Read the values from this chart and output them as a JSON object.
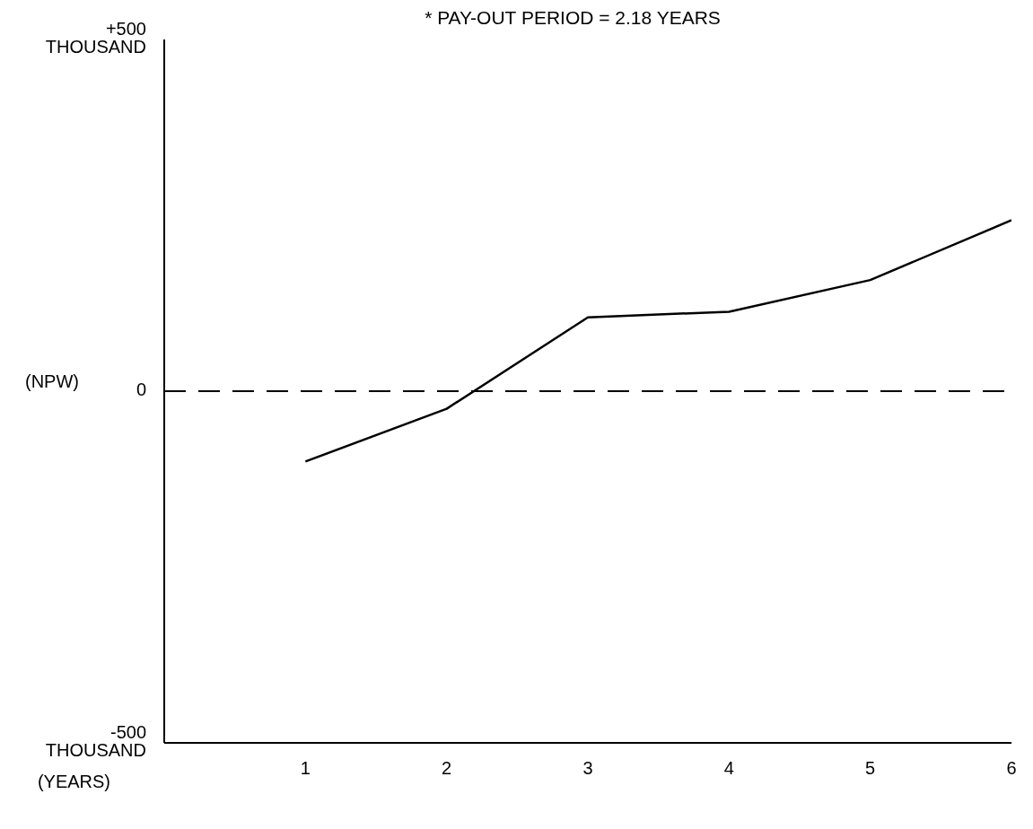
{
  "chart_data": {
    "type": "line",
    "title": "* PAY-OUT PERIOD = 2.18 YEARS",
    "xlabel": "(YEARS)",
    "ylabel": "(NPW)",
    "x": [
      1,
      2,
      3,
      4,
      5,
      6
    ],
    "values": [
      -100,
      -25,
      105,
      113,
      158,
      243
    ],
    "color": "#000000",
    "marker": "none",
    "line_style": "solid",
    "xlim": [
      0,
      6
    ],
    "xticks": [
      1,
      2,
      3,
      4,
      5,
      6
    ],
    "ylim": [
      -500,
      500
    ],
    "yticks": [
      {
        "value": -500,
        "label": "-500\nTHOUSAND"
      },
      0,
      {
        "value": 500,
        "label": "+500\nTHOUSAND"
      }
    ],
    "ref_lines": [
      {
        "axis": "y",
        "value": 0,
        "label": null,
        "color": "#000000",
        "line_style": "dashed"
      }
    ],
    "grid": false,
    "legend": false
  }
}
